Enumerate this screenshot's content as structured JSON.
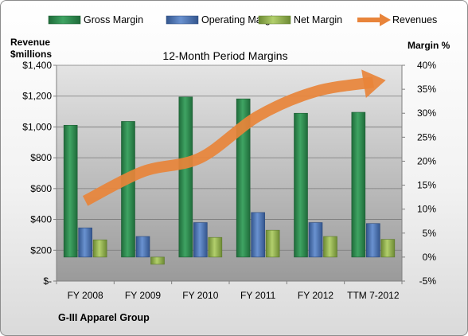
{
  "chart_data": {
    "type": "bar",
    "title": "12-Month Period Margins",
    "company": "G-III Apparel Group",
    "categories": [
      "FY 2008",
      "FY 2009",
      "FY 2010",
      "FY 2011",
      "FY 2012",
      "TTM 7-2012"
    ],
    "left_axis": {
      "label_line1": "Revenue",
      "label_line2": "$millions",
      "ylim": [
        0,
        1400
      ],
      "ticks": [
        0,
        200,
        400,
        600,
        800,
        1000,
        1200,
        1400
      ],
      "tick_labels": [
        "$-",
        "$200",
        "$400",
        "$600",
        "$800",
        "$1,000",
        "$1,200",
        "$1,400"
      ]
    },
    "right_axis": {
      "label": "Margin %",
      "ylim": [
        -5,
        40
      ],
      "ticks": [
        -5,
        0,
        5,
        10,
        15,
        20,
        25,
        30,
        35,
        40
      ],
      "tick_labels": [
        "-5%",
        "0%",
        "5%",
        "10%",
        "15%",
        "20%",
        "25%",
        "30%",
        "35%",
        "40%"
      ]
    },
    "series": [
      {
        "name": "Gross Margin",
        "axis": "right",
        "color": "#2e8b4e",
        "values": [
          27.5,
          28.3,
          33.4,
          33.0,
          30.0,
          30.2
        ]
      },
      {
        "name": "Operating Margin",
        "axis": "right",
        "color": "#4a74b8",
        "values": [
          6.1,
          4.3,
          7.2,
          9.3,
          7.2,
          7.0
        ]
      },
      {
        "name": "Net Margin",
        "axis": "right",
        "color": "#94b54e",
        "values": [
          3.6,
          -1.5,
          4.1,
          5.6,
          4.3,
          3.7
        ]
      },
      {
        "name": "Revenues",
        "axis": "left",
        "color": "#e8843a",
        "values": [
          520,
          710,
          800,
          1070,
          1230,
          1290
        ]
      }
    ],
    "legend_position": "top",
    "grid": true
  }
}
